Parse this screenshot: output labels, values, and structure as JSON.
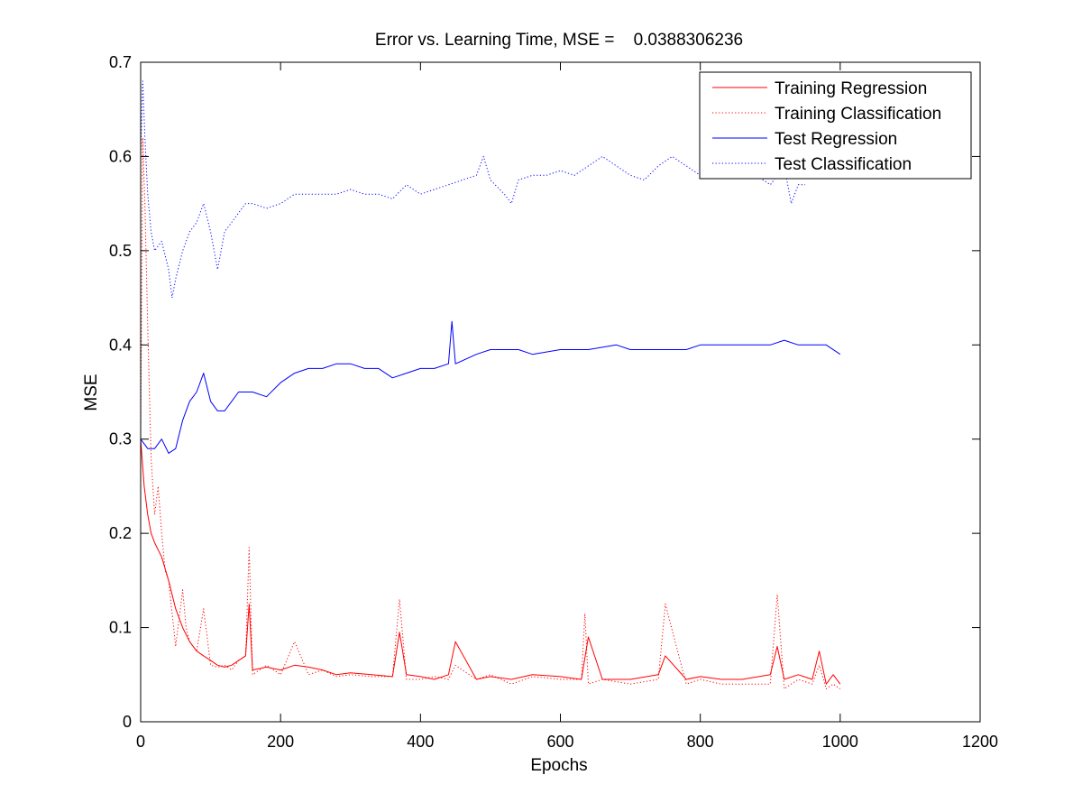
{
  "chart_data": {
    "type": "line",
    "title": "Error vs. Learning Time, MSE =    0.0388306236",
    "xlabel": "Epochs",
    "ylabel": "MSE",
    "xlim": [
      0,
      1200
    ],
    "ylim": [
      0,
      0.7
    ],
    "xticks": [
      "0",
      "200",
      "400",
      "600",
      "800",
      "1000",
      "1200"
    ],
    "yticks": [
      "0",
      "0.1",
      "0.2",
      "0.3",
      "0.4",
      "0.5",
      "0.6",
      "0.7"
    ],
    "grid": false,
    "legend_position": "top-right",
    "series": [
      {
        "name": "Training Regression",
        "color": "#ff0000",
        "style": "solid",
        "x": [
          0,
          5,
          10,
          15,
          20,
          30,
          40,
          50,
          60,
          70,
          80,
          90,
          100,
          110,
          120,
          130,
          140,
          150,
          155,
          160,
          180,
          200,
          220,
          240,
          260,
          280,
          300,
          330,
          360,
          370,
          380,
          400,
          420,
          440,
          450,
          480,
          500,
          530,
          560,
          600,
          630,
          640,
          660,
          700,
          740,
          750,
          780,
          800,
          830,
          860,
          900,
          910,
          920,
          940,
          960,
          970,
          980,
          990,
          1000
        ],
        "y": [
          0.3,
          0.25,
          0.22,
          0.2,
          0.19,
          0.175,
          0.15,
          0.12,
          0.1,
          0.085,
          0.075,
          0.07,
          0.065,
          0.06,
          0.058,
          0.06,
          0.065,
          0.07,
          0.125,
          0.055,
          0.058,
          0.055,
          0.06,
          0.058,
          0.055,
          0.05,
          0.052,
          0.05,
          0.048,
          0.095,
          0.05,
          0.048,
          0.045,
          0.05,
          0.085,
          0.045,
          0.048,
          0.045,
          0.05,
          0.048,
          0.045,
          0.09,
          0.045,
          0.045,
          0.05,
          0.07,
          0.045,
          0.048,
          0.045,
          0.045,
          0.05,
          0.08,
          0.045,
          0.05,
          0.045,
          0.075,
          0.04,
          0.05,
          0.04
        ]
      },
      {
        "name": "Training Classification",
        "color": "#ff0000",
        "style": "dotted",
        "x": [
          0,
          3,
          6,
          10,
          15,
          20,
          25,
          30,
          35,
          40,
          50,
          60,
          65,
          70,
          80,
          90,
          100,
          110,
          120,
          130,
          140,
          150,
          155,
          160,
          180,
          200,
          220,
          240,
          260,
          280,
          300,
          330,
          360,
          370,
          380,
          400,
          420,
          440,
          450,
          480,
          500,
          530,
          560,
          600,
          630,
          635,
          640,
          660,
          700,
          740,
          750,
          780,
          800,
          830,
          860,
          900,
          910,
          920,
          940,
          960,
          970,
          980,
          990,
          1000
        ],
        "y": [
          0.3,
          0.62,
          0.55,
          0.42,
          0.28,
          0.22,
          0.25,
          0.2,
          0.16,
          0.15,
          0.08,
          0.14,
          0.1,
          0.085,
          0.075,
          0.12,
          0.06,
          0.058,
          0.06,
          0.055,
          0.065,
          0.07,
          0.185,
          0.05,
          0.06,
          0.05,
          0.085,
          0.05,
          0.055,
          0.048,
          0.05,
          0.048,
          0.048,
          0.13,
          0.045,
          0.045,
          0.048,
          0.045,
          0.06,
          0.045,
          0.05,
          0.04,
          0.048,
          0.045,
          0.045,
          0.115,
          0.04,
          0.045,
          0.04,
          0.045,
          0.125,
          0.04,
          0.045,
          0.04,
          0.04,
          0.04,
          0.135,
          0.035,
          0.045,
          0.04,
          0.06,
          0.035,
          0.04,
          0.035
        ]
      },
      {
        "name": "Test Regression",
        "color": "#0000ff",
        "style": "solid",
        "x": [
          0,
          10,
          20,
          30,
          40,
          50,
          60,
          70,
          80,
          90,
          100,
          110,
          120,
          130,
          140,
          150,
          160,
          180,
          200,
          220,
          240,
          260,
          280,
          300,
          320,
          340,
          360,
          380,
          400,
          420,
          440,
          445,
          450,
          480,
          500,
          520,
          540,
          560,
          600,
          640,
          680,
          700,
          740,
          780,
          800,
          840,
          880,
          900,
          920,
          940,
          960,
          980,
          1000
        ],
        "y": [
          0.3,
          0.29,
          0.29,
          0.3,
          0.285,
          0.29,
          0.32,
          0.34,
          0.35,
          0.37,
          0.34,
          0.33,
          0.33,
          0.34,
          0.35,
          0.35,
          0.35,
          0.345,
          0.36,
          0.37,
          0.375,
          0.375,
          0.38,
          0.38,
          0.375,
          0.375,
          0.365,
          0.37,
          0.375,
          0.375,
          0.38,
          0.425,
          0.38,
          0.39,
          0.395,
          0.395,
          0.395,
          0.39,
          0.395,
          0.395,
          0.4,
          0.395,
          0.395,
          0.395,
          0.4,
          0.4,
          0.4,
          0.4,
          0.405,
          0.4,
          0.4,
          0.4,
          0.39
        ]
      },
      {
        "name": "Test Classification",
        "color": "#0000ff",
        "style": "dotted",
        "x": [
          0,
          3,
          6,
          10,
          15,
          20,
          30,
          40,
          45,
          50,
          60,
          70,
          80,
          90,
          100,
          110,
          120,
          130,
          140,
          150,
          160,
          180,
          200,
          220,
          240,
          260,
          280,
          300,
          320,
          340,
          360,
          380,
          400,
          420,
          440,
          460,
          480,
          490,
          500,
          520,
          530,
          540,
          560,
          580,
          600,
          620,
          640,
          660,
          680,
          700,
          720,
          740,
          760,
          780,
          800,
          820,
          840,
          860,
          880,
          900,
          920,
          930,
          940,
          950
        ],
        "y": [
          0.6,
          0.68,
          0.62,
          0.56,
          0.52,
          0.5,
          0.51,
          0.48,
          0.45,
          0.47,
          0.5,
          0.52,
          0.53,
          0.55,
          0.52,
          0.48,
          0.52,
          0.53,
          0.54,
          0.55,
          0.55,
          0.545,
          0.55,
          0.56,
          0.56,
          0.56,
          0.56,
          0.565,
          0.56,
          0.56,
          0.555,
          0.57,
          0.56,
          0.565,
          0.57,
          0.575,
          0.58,
          0.6,
          0.575,
          0.56,
          0.55,
          0.575,
          0.58,
          0.58,
          0.585,
          0.58,
          0.59,
          0.6,
          0.59,
          0.58,
          0.575,
          0.59,
          0.6,
          0.59,
          0.58,
          0.585,
          0.59,
          0.6,
          0.58,
          0.57,
          0.59,
          0.55,
          0.57,
          0.57
        ]
      }
    ]
  }
}
